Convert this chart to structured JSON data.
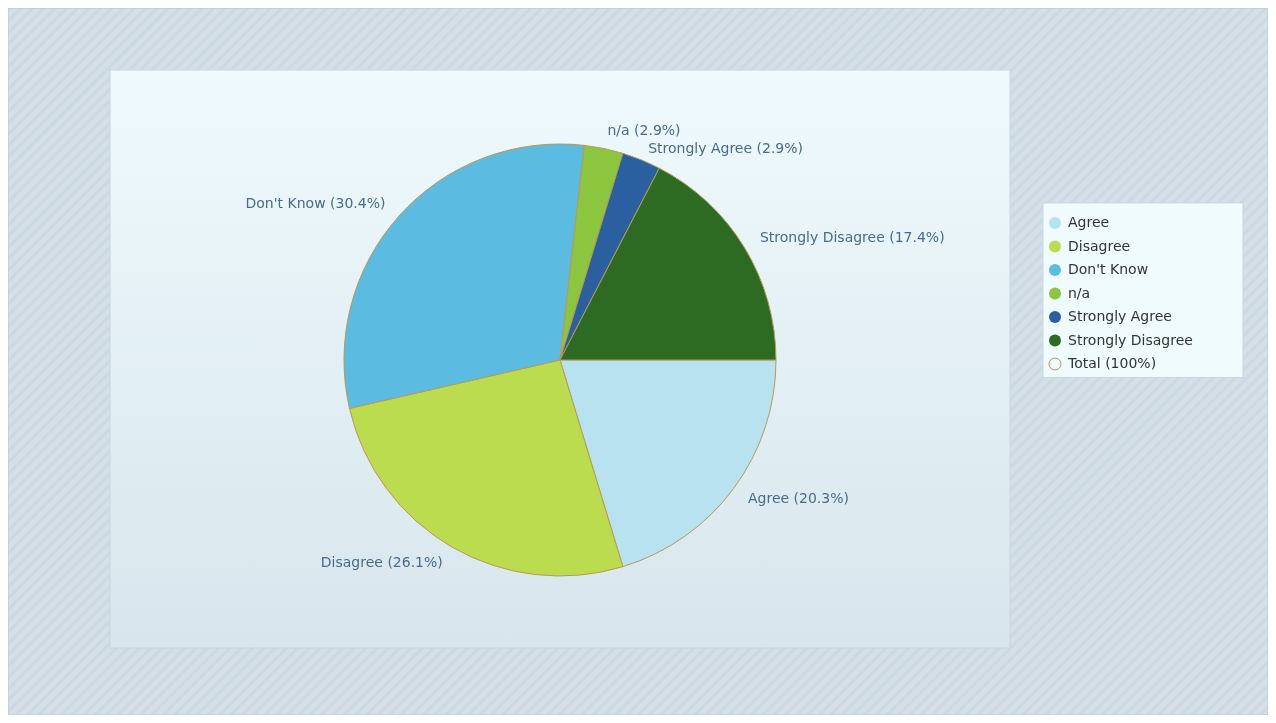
{
  "chart_data": {
    "type": "pie",
    "categories": [
      "Agree",
      "Disagree",
      "Don't Know",
      "n/a",
      "Strongly Agree",
      "Strongly Disagree"
    ],
    "values": [
      20.3,
      26.1,
      30.4,
      2.9,
      2.9,
      17.4
    ],
    "colors": [
      "#b8e2f0",
      "#bcdc50",
      "#5bbbe0",
      "#8cc63f",
      "#2a5fa0",
      "#2d6b22"
    ],
    "value_labels": [
      "Agree (20.3%)",
      "Disagree (26.1%)",
      "Don't Know (30.4%)",
      "n/a (2.9%)",
      "Strongly Agree (2.9%)",
      "Strongly Disagree (17.4%)"
    ],
    "legend": "right",
    "annotations": [
      "Total (100%)"
    ]
  }
}
